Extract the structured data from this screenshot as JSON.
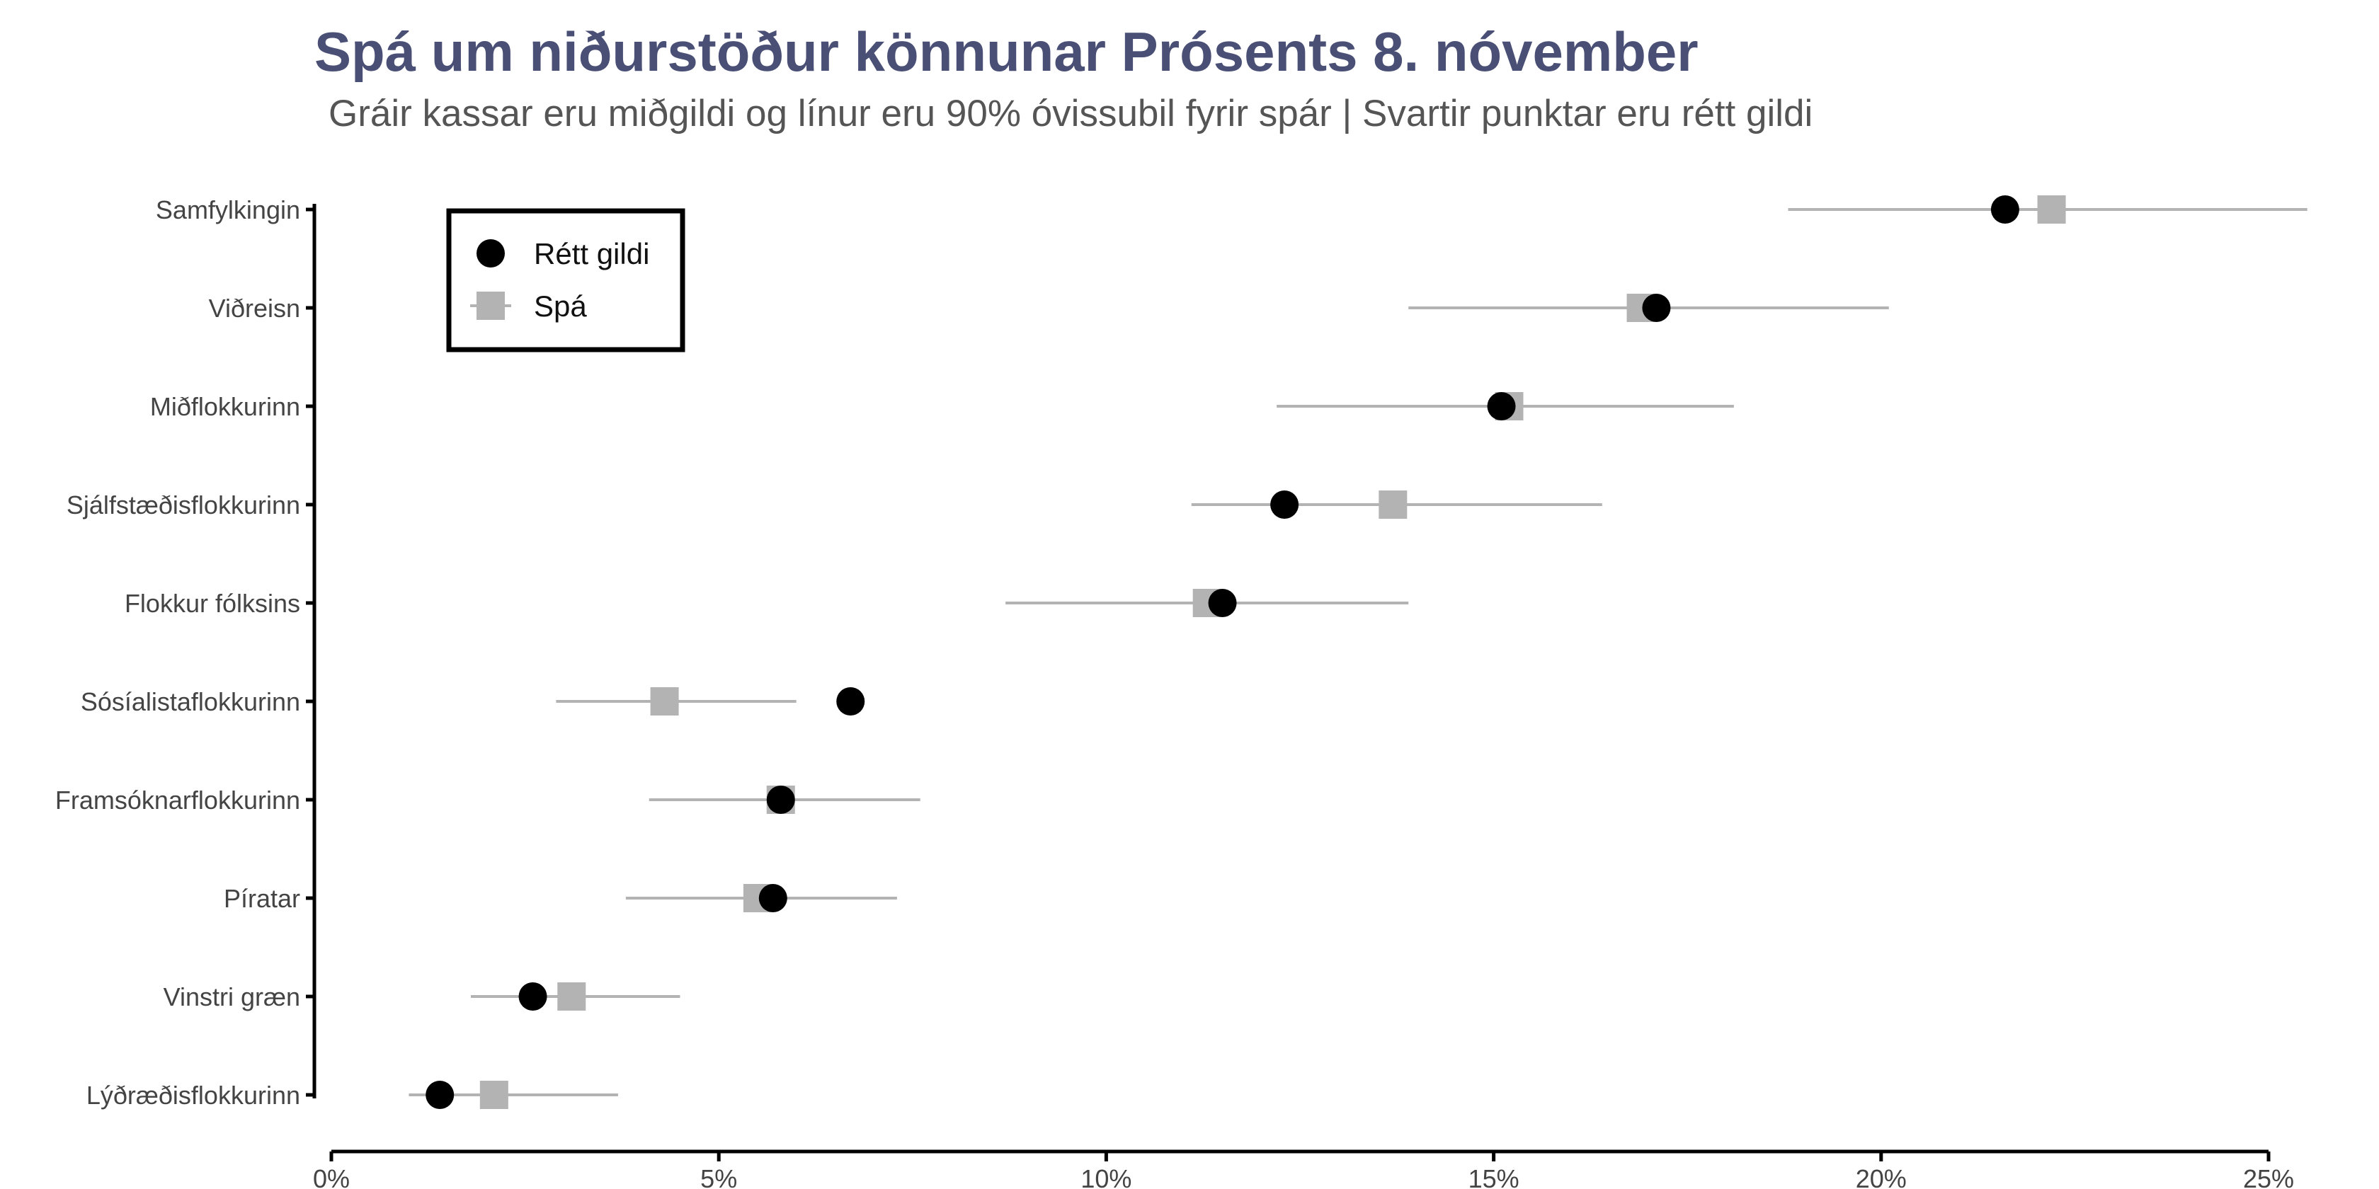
{
  "chart_data": {
    "type": "scatter",
    "title": "Spá um niðurstöður könnunar Prósents 8. nóvember",
    "subtitle": "Gráir kassar eru miðgildi og línur eru 90% óvissubil fyrir spár | Svartir punktar eru rétt gildi",
    "xlabel": "",
    "ylabel": "",
    "xlim": [
      0,
      25
    ],
    "xticks": [
      0,
      5,
      10,
      15,
      20,
      25
    ],
    "xtick_labels": [
      "0%",
      "5%",
      "10%",
      "15%",
      "20%",
      "25%"
    ],
    "grid": false,
    "legend": {
      "placement": "top-left",
      "entries": [
        {
          "label": "Rétt gildi",
          "marker": "circle",
          "color": "#000000"
        },
        {
          "label": "Spá",
          "marker": "square",
          "color": "#b3b3b3"
        }
      ]
    },
    "categories": [
      "Samfylkingin",
      "Viðreisn",
      "Miðflokkurinn",
      "Sjálfstæðisflokkurinn",
      "Flokkur fólksins",
      "Sósíalistaflokkurinn",
      "Framsóknarflokkurinn",
      "Píratar",
      "Vinstri græn",
      "Lýðræðisflokkurinn"
    ],
    "series": [
      {
        "name": "Rétt gildi",
        "values": [
          21.6,
          17.1,
          15.1,
          12.3,
          11.5,
          6.7,
          5.8,
          5.7,
          2.6,
          1.4
        ]
      },
      {
        "name": "Spá",
        "values": [
          22.2,
          16.9,
          15.2,
          13.7,
          11.3,
          4.3,
          5.8,
          5.5,
          3.1,
          2.1
        ],
        "lower": [
          18.8,
          13.9,
          12.2,
          11.1,
          8.7,
          2.9,
          4.1,
          3.8,
          1.8,
          1.0
        ],
        "upper": [
          25.5,
          20.1,
          18.1,
          16.4,
          13.9,
          6.0,
          7.6,
          7.3,
          4.5,
          3.7
        ]
      }
    ],
    "colors": {
      "actual": "#000000",
      "forecast": "#b3b3b3",
      "interval": "#b3b3b3",
      "axis": "#000000",
      "title": "#4a4f75"
    }
  }
}
